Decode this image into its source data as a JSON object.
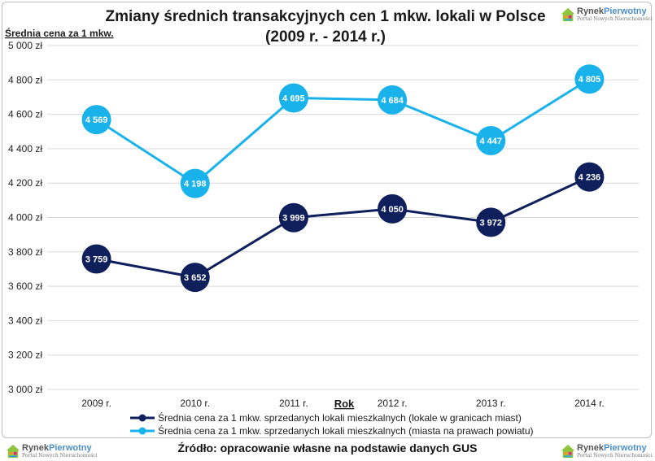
{
  "colors": {
    "series_city": "#0f1f5c",
    "series_powiat": "#1ab2ea",
    "grid": "#d9d9d9"
  },
  "chart_data": {
    "type": "line",
    "title": [
      "Zmiany średnich transakcyjnych cen 1 mkw. lokali w Polsce",
      "(2009 r. - 2014 r.)"
    ],
    "ylabel": "Średnia cena za 1 mkw.",
    "xlabel": "Rok",
    "categories": [
      "2009 r.",
      "2010 r.",
      "2011 r.",
      "2012 r.",
      "2013 r.",
      "2014 r."
    ],
    "ylim": [
      3000,
      5000
    ],
    "ytick_step": 200,
    "ytick_labels": [
      "3 000 zł",
      "3 200 zł",
      "3 400 zł",
      "3 600 zł",
      "3 800 zł",
      "4 000 zł",
      "4 200 zł",
      "4 400 zł",
      "4 600 zł",
      "4 800 zł",
      "5 000 zł"
    ],
    "grid": true,
    "series": [
      {
        "name": "Średnia cena za 1 mkw. sprzedanych lokali mieszkalnych (lokale w granicach miast)",
        "values": [
          3759,
          3652,
          3999,
          4050,
          3972,
          4236
        ],
        "labels": [
          "3 759",
          "3 652",
          "3 999",
          "4 050",
          "3 972",
          "4 236"
        ],
        "color": "#0f1f5c"
      },
      {
        "name": "Średnia cena za 1 mkw. sprzedanych lokali mieszkalnych (miasta na prawach powiatu)",
        "values": [
          4569,
          4198,
          4695,
          4684,
          4447,
          4805
        ],
        "labels": [
          "4 569",
          "4 198",
          "4 695",
          "4 684",
          "4 447",
          "4 805"
        ],
        "color": "#1ab2ea"
      }
    ],
    "legend_position": "bottom"
  },
  "footer": {
    "source": "Źródło: opracowanie własne na podstawie danych GUS"
  },
  "logo": {
    "brand_a": "Rynek",
    "brand_b": "Pierwotny",
    "subtitle": "Portal Nowych Nieruchomości"
  }
}
